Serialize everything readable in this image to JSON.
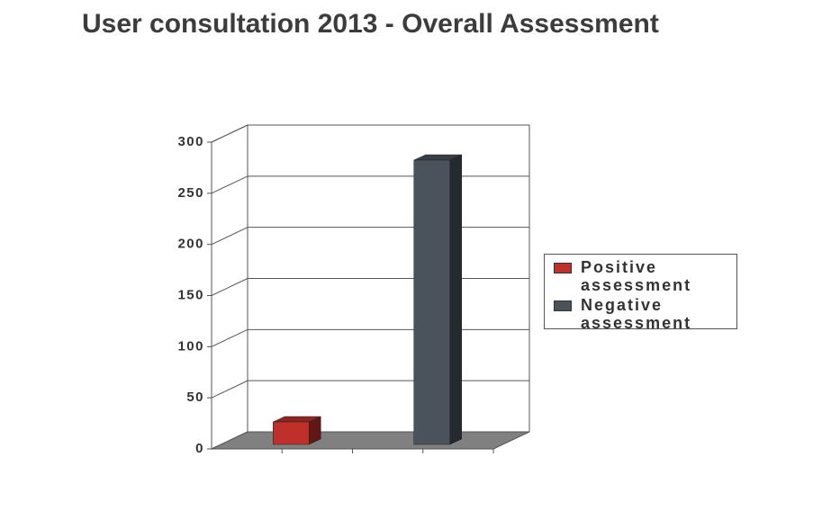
{
  "chart_data": {
    "type": "bar3d",
    "title": "User consultation 2013 - Overall Assessment",
    "categories": [
      null
    ],
    "series": [
      {
        "name": "Positive assessment",
        "color": "#c0302a",
        "values": [
          22
        ]
      },
      {
        "name": "Negative assessment",
        "color": "#4a535c",
        "values": [
          278
        ]
      }
    ],
    "ylim": [
      0,
      300
    ],
    "yticks": [
      0,
      50,
      100,
      150,
      200,
      250,
      300
    ],
    "grid": true,
    "legend": "right"
  }
}
